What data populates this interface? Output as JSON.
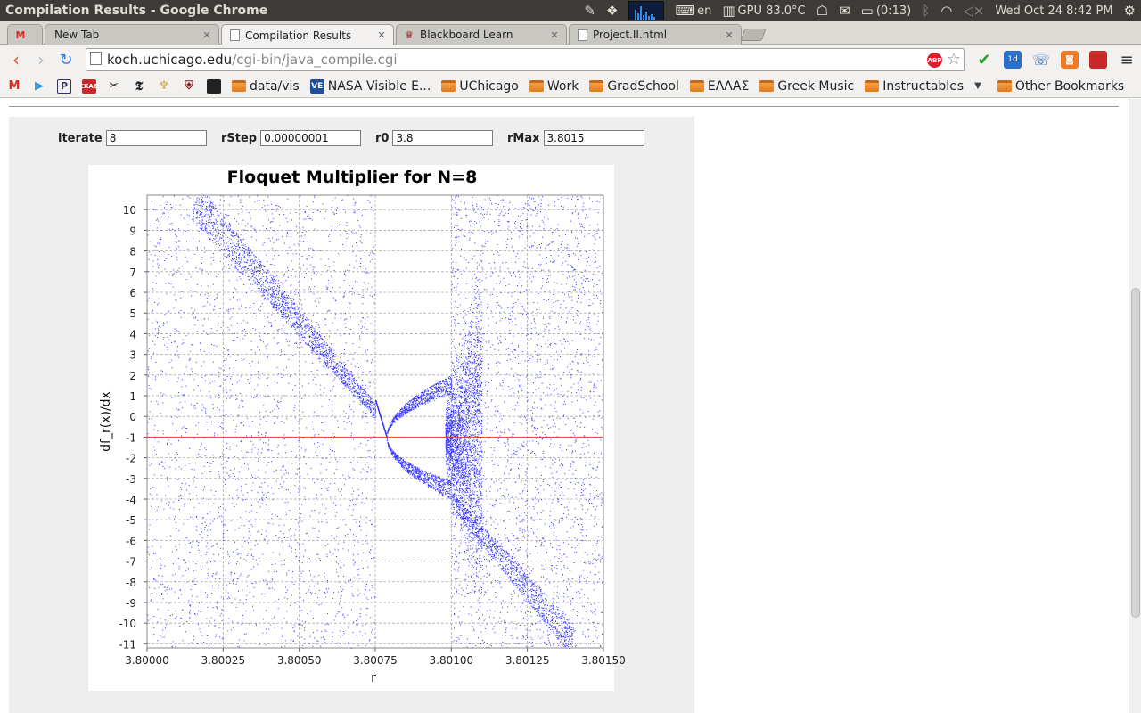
{
  "os_bar": {
    "window_title": "Compilation Results - Google Chrome",
    "keyboard": "en",
    "gpu": "GPU 83.0°C",
    "battery": "(0:13)",
    "datetime": "Wed Oct 24   8:42 PM"
  },
  "tabs": [
    {
      "label": "New Tab",
      "favicon": "gmail-icon",
      "active": false
    },
    {
      "label": "Compilation Results",
      "favicon": "page-icon",
      "active": true
    },
    {
      "label": "Blackboard Learn",
      "favicon": "blackboard-icon",
      "active": false
    },
    {
      "label": "Project.II.html",
      "favicon": "page-icon",
      "active": false
    }
  ],
  "address_bar": {
    "host": "koch.uchicago.edu",
    "path": "/cgi-bin/java_compile.cgi"
  },
  "bookmarks": [
    {
      "label": "data/vis",
      "icon": "folder-icon"
    },
    {
      "label": "NASA Visible E...",
      "icon": "ve-icon"
    },
    {
      "label": "UChicago",
      "icon": "folder-icon"
    },
    {
      "label": "Work",
      "icon": "folder-icon"
    },
    {
      "label": "GradSchool",
      "icon": "folder-icon"
    },
    {
      "label": "ΕΛΛΑΣ",
      "icon": "folder-icon"
    },
    {
      "label": "Greek Music",
      "icon": "folder-icon"
    },
    {
      "label": "Instructables",
      "icon": "folder-icon"
    }
  ],
  "other_bookmarks": "Other Bookmarks",
  "params": {
    "iterate": {
      "label": "iterate",
      "value": "8"
    },
    "rstep": {
      "label": "rStep",
      "value": "0.00000001"
    },
    "r0": {
      "label": "r0",
      "value": "3.8"
    },
    "rmax": {
      "label": "rMax",
      "value": "3.8015"
    }
  },
  "chart_data": {
    "type": "scatter",
    "title": "Floquet Multiplier for N=8",
    "xlabel": "r",
    "ylabel": "df_r(x)/dx",
    "xlim": [
      3.8,
      3.8015
    ],
    "ylim": [
      -11.2,
      10.7
    ],
    "x_ticks": [
      "3.80000",
      "3.80025",
      "3.80050",
      "3.80075",
      "3.80100",
      "3.80125",
      "3.80150"
    ],
    "x_tick_values": [
      3.8,
      3.80025,
      3.8005,
      3.80075,
      3.801,
      3.80125,
      3.8015
    ],
    "y_ticks": [
      10,
      9,
      8,
      7,
      6,
      5,
      4,
      3,
      2,
      1,
      0,
      -1,
      -2,
      -3,
      -4,
      -5,
      -6,
      -7,
      -8,
      -9,
      -10,
      -11
    ],
    "grid": true,
    "point_color": "#3333ff",
    "reference_line": {
      "y": -1,
      "color": "#ff3030"
    },
    "periodic_window": [
      3.80075,
      3.801
    ]
  }
}
